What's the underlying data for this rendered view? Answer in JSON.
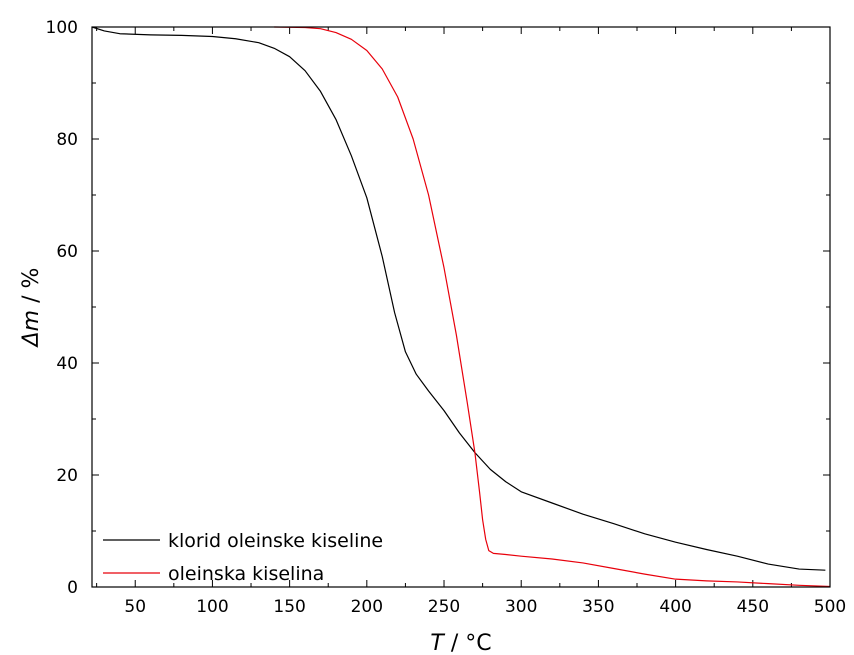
{
  "chart_data": {
    "type": "line",
    "xlabel": {
      "italic": "T",
      "rest": " / °C"
    },
    "ylabel": {
      "italic": "Δm",
      "rest": " / %"
    },
    "xlim": [
      22,
      500
    ],
    "ylim": [
      0,
      100
    ],
    "x_ticks": [
      50,
      100,
      150,
      200,
      250,
      300,
      350,
      400,
      450,
      500
    ],
    "y_ticks": [
      0,
      20,
      40,
      60,
      80,
      100
    ],
    "x_tick_labels": [
      "50",
      "100",
      "150",
      "200",
      "250",
      "300",
      "350",
      "400",
      "450",
      "500"
    ],
    "y_tick_labels": [
      "0",
      "20",
      "40",
      "60",
      "80",
      "100"
    ],
    "legend_position": "bottom-left",
    "series": [
      {
        "name": "klorid oleinske kiseline",
        "color": "#000000",
        "points": [
          [
            22,
            100
          ],
          [
            30,
            99.3
          ],
          [
            40,
            98.8
          ],
          [
            60,
            98.6
          ],
          [
            80,
            98.5
          ],
          [
            100,
            98.3
          ],
          [
            115,
            97.9
          ],
          [
            130,
            97.2
          ],
          [
            140,
            96.2
          ],
          [
            150,
            94.7
          ],
          [
            160,
            92.2
          ],
          [
            170,
            88.5
          ],
          [
            180,
            83.5
          ],
          [
            190,
            77
          ],
          [
            200,
            69.5
          ],
          [
            210,
            59
          ],
          [
            218,
            49
          ],
          [
            225,
            42
          ],
          [
            232,
            38
          ],
          [
            240,
            35
          ],
          [
            250,
            31.5
          ],
          [
            260,
            27.5
          ],
          [
            270,
            24
          ],
          [
            280,
            21
          ],
          [
            290,
            18.8
          ],
          [
            300,
            17
          ],
          [
            320,
            15
          ],
          [
            340,
            13
          ],
          [
            360,
            11.3
          ],
          [
            380,
            9.5
          ],
          [
            400,
            8
          ],
          [
            420,
            6.7
          ],
          [
            440,
            5.5
          ],
          [
            460,
            4.1
          ],
          [
            480,
            3.2
          ],
          [
            497,
            3.0
          ]
        ]
      },
      {
        "name": "oleinska kiselina",
        "color": "#e8000b",
        "points": [
          [
            140,
            100
          ],
          [
            160,
            99.9
          ],
          [
            170,
            99.7
          ],
          [
            180,
            99
          ],
          [
            190,
            97.8
          ],
          [
            200,
            95.8
          ],
          [
            210,
            92.5
          ],
          [
            220,
            87.5
          ],
          [
            230,
            80
          ],
          [
            240,
            70
          ],
          [
            250,
            57
          ],
          [
            258,
            45
          ],
          [
            265,
            33
          ],
          [
            270,
            24
          ],
          [
            273,
            17
          ],
          [
            275,
            12
          ],
          [
            277,
            8.5
          ],
          [
            279,
            6.5
          ],
          [
            282,
            6
          ],
          [
            290,
            5.8
          ],
          [
            300,
            5.5
          ],
          [
            320,
            5
          ],
          [
            340,
            4.3
          ],
          [
            360,
            3.3
          ],
          [
            380,
            2.3
          ],
          [
            400,
            1.4
          ],
          [
            420,
            1.1
          ],
          [
            440,
            0.9
          ],
          [
            460,
            0.6
          ],
          [
            480,
            0.3
          ],
          [
            500,
            0.1
          ]
        ]
      }
    ]
  }
}
